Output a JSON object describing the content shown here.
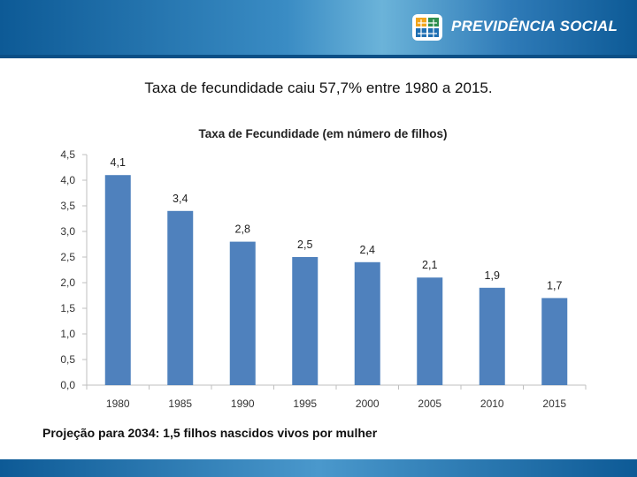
{
  "header": {
    "brand_text": "PREVIDÊNCIA SOCIAL",
    "logo_icon": "previdencia-social-logo-icon"
  },
  "slide": {
    "title": "Taxa de fecundidade caiu 57,7% entre 1980 a 2015.",
    "footnote": "Projeção para 2034: 1,5 filhos nascidos vivos por mulher"
  },
  "colors": {
    "bar": "#4f81bd",
    "header_dark": "#0d5a96",
    "axis": "#bfbfbf"
  },
  "chart_data": {
    "type": "bar",
    "title": "Taxa de Fecundidade (em número de filhos)",
    "categories": [
      "1980",
      "1985",
      "1990",
      "1995",
      "2000",
      "2005",
      "2010",
      "2015"
    ],
    "values": [
      4.1,
      3.4,
      2.8,
      2.5,
      2.4,
      2.1,
      1.9,
      1.7
    ],
    "data_labels": [
      "4,1",
      "3,4",
      "2,8",
      "2,5",
      "2,4",
      "2,1",
      "1,9",
      "1,7"
    ],
    "ylim": [
      0,
      4.5
    ],
    "yticks": [
      0,
      0.5,
      1.0,
      1.5,
      2.0,
      2.5,
      3.0,
      3.5,
      4.0,
      4.5
    ],
    "ytick_labels": [
      "0,0",
      "0,5",
      "1,0",
      "1,5",
      "2,0",
      "2,5",
      "3,0",
      "3,5",
      "4,0",
      "4,5"
    ],
    "xlabel": "",
    "ylabel": "",
    "grid": false,
    "legend": "none"
  }
}
